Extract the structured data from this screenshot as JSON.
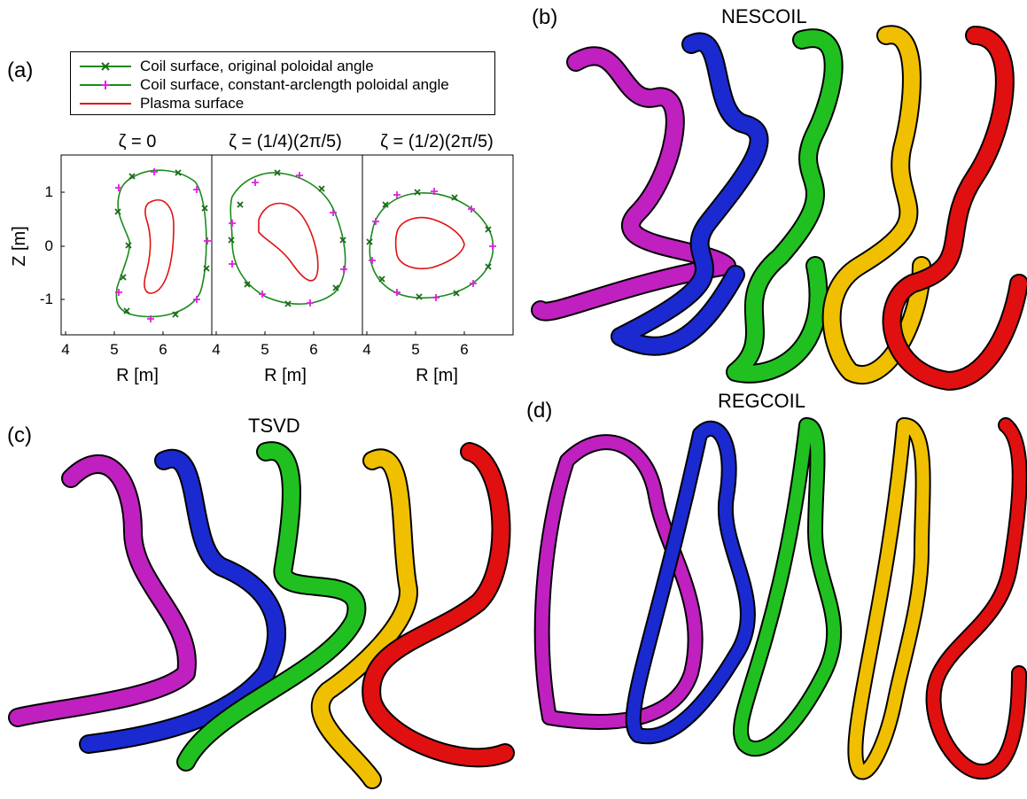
{
  "panel_a": {
    "label": "(a)",
    "legend": [
      {
        "text": "Coil surface, original poloidal angle",
        "color": "#1a8a1a",
        "marker": "x",
        "marker_color": "#1a6a1a"
      },
      {
        "text": "Coil surface, constant-arclength poloidal angle",
        "color": "#1a8a1a",
        "marker": "+",
        "marker_color": "#e020e0"
      },
      {
        "text": "Plasma surface",
        "color": "#e01010",
        "marker": "none",
        "marker_color": ""
      }
    ],
    "subplot_titles": [
      "ζ = 0",
      "ζ = (1/4)(2π/5)",
      "ζ = (1/2)(2π/5)"
    ],
    "xlabel": "R [m]",
    "ylabel": "Z [m]",
    "xticks": [
      "4",
      "5",
      "6"
    ],
    "yticks": [
      "1",
      "0",
      "-1"
    ]
  },
  "panel_b": {
    "label": "(b)",
    "title": "NESCOIL"
  },
  "panel_c": {
    "label": "(c)",
    "title": "TSVD"
  },
  "panel_d": {
    "label": "(d)",
    "title": "REGCOIL"
  },
  "coil_colors": [
    "#c020c0",
    "#1a2ad0",
    "#20c020",
    "#f0c000",
    "#e01010"
  ]
}
